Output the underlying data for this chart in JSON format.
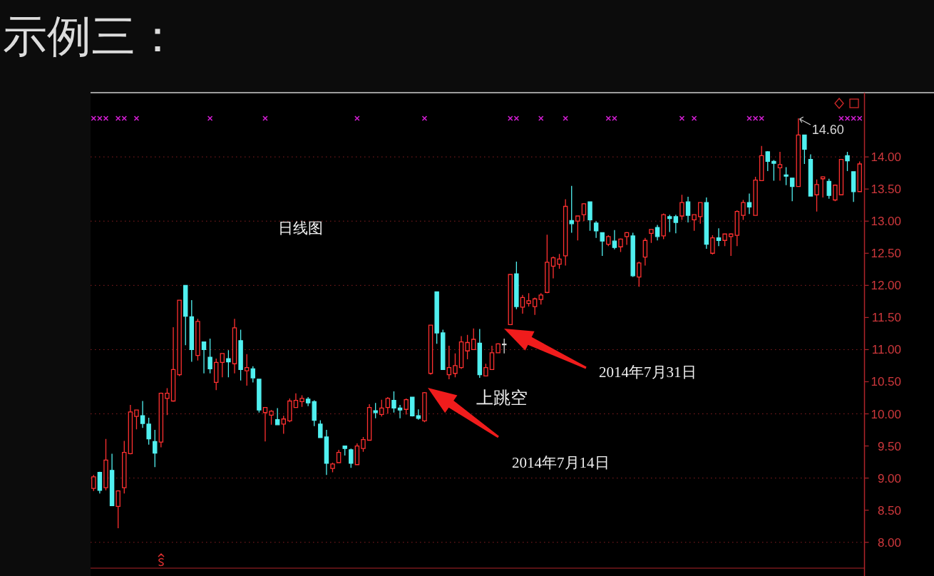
{
  "chart_data": {
    "type": "candlestick",
    "title": "示例三：",
    "categories": [
      null,
      null,
      null,
      null,
      null,
      null,
      null,
      null,
      null,
      null,
      null,
      null,
      null,
      null,
      null,
      null,
      null,
      null,
      null,
      null,
      null,
      null,
      null,
      null,
      null,
      null,
      null,
      null,
      null,
      null,
      null,
      null,
      null,
      null,
      null,
      null,
      null,
      null,
      null,
      null,
      null,
      null,
      null,
      null,
      null,
      null,
      null,
      null,
      null,
      null,
      null,
      null,
      null,
      null,
      null,
      null,
      null,
      null,
      null,
      null,
      null,
      null,
      null,
      null,
      null,
      null,
      null,
      null,
      null,
      null,
      null,
      null,
      null,
      null,
      null,
      null,
      null,
      null,
      null,
      null,
      null,
      null,
      null,
      null,
      null,
      null,
      null,
      null,
      null,
      null,
      null,
      null,
      null,
      null,
      null,
      null,
      null,
      null,
      null,
      null,
      null,
      null,
      null,
      null,
      null,
      null,
      null,
      null,
      null,
      null,
      null,
      null,
      null,
      null,
      null,
      null,
      null,
      null,
      null,
      null,
      null,
      null,
      null,
      null,
      null,
      null
    ],
    "ohlc": [
      [
        8.84,
        9.05,
        8.8,
        9.02
      ],
      [
        9.09,
        9.1,
        8.76,
        8.81
      ],
      [
        8.85,
        9.61,
        8.81,
        9.28
      ],
      [
        9.12,
        9.38,
        8.57,
        8.57
      ],
      [
        8.56,
        8.81,
        8.22,
        8.8
      ],
      [
        8.85,
        9.58,
        8.76,
        9.4
      ],
      [
        9.38,
        10.14,
        9.37,
        10.03
      ],
      [
        9.96,
        10.06,
        9.76,
        10.06
      ],
      [
        9.97,
        10.2,
        9.78,
        9.85
      ],
      [
        9.84,
        9.94,
        9.52,
        9.61
      ],
      [
        9.57,
        9.75,
        9.17,
        9.39
      ],
      [
        9.56,
        10.33,
        9.48,
        10.32
      ],
      [
        10.24,
        10.4,
        9.98,
        10.32
      ],
      [
        10.2,
        11.35,
        10.19,
        10.69
      ],
      [
        10.61,
        11.77,
        10.59,
        11.77
      ],
      [
        12.0,
        12.0,
        11.07,
        11.52
      ],
      [
        11.51,
        11.77,
        10.81,
        11.0
      ],
      [
        10.91,
        11.48,
        10.83,
        11.44
      ],
      [
        11.12,
        11.12,
        10.63,
        11.0
      ],
      [
        10.88,
        11.17,
        10.63,
        10.7
      ],
      [
        10.49,
        10.86,
        10.37,
        10.8
      ],
      [
        10.8,
        10.94,
        10.57,
        10.94
      ],
      [
        10.86,
        10.99,
        10.57,
        10.81
      ],
      [
        10.78,
        11.48,
        10.63,
        11.34
      ],
      [
        11.14,
        11.31,
        10.52,
        10.69
      ],
      [
        10.67,
        10.93,
        10.44,
        10.72
      ],
      [
        10.7,
        10.74,
        10.49,
        10.56
      ],
      [
        10.54,
        10.54,
        10.02,
        10.06
      ],
      [
        10.02,
        10.1,
        9.57,
        10.1
      ],
      [
        9.98,
        10.06,
        9.83,
        10.04
      ],
      [
        9.91,
        10.09,
        9.83,
        9.83
      ],
      [
        9.84,
        9.97,
        9.69,
        9.92
      ],
      [
        9.89,
        10.24,
        9.87,
        10.2
      ],
      [
        10.1,
        10.32,
        10.1,
        10.21
      ],
      [
        10.19,
        10.29,
        10.11,
        10.24
      ],
      [
        10.23,
        10.26,
        10.12,
        10.17
      ],
      [
        10.19,
        10.21,
        9.81,
        9.9
      ],
      [
        9.84,
        9.9,
        9.63,
        9.63
      ],
      [
        9.64,
        9.75,
        9.05,
        9.23
      ],
      [
        9.15,
        9.24,
        9.09,
        9.22
      ],
      [
        9.24,
        9.44,
        9.24,
        9.4
      ],
      [
        9.5,
        9.5,
        9.35,
        9.46
      ],
      [
        9.44,
        9.46,
        9.16,
        9.23
      ],
      [
        9.21,
        9.54,
        9.21,
        9.5
      ],
      [
        9.46,
        9.64,
        9.41,
        9.6
      ],
      [
        9.59,
        10.15,
        9.59,
        10.1
      ],
      [
        10.05,
        10.17,
        9.93,
        10.02
      ],
      [
        9.99,
        10.22,
        9.96,
        10.09
      ],
      [
        10.1,
        10.26,
        10.0,
        10.24
      ],
      [
        10.21,
        10.35,
        10.02,
        10.09
      ],
      [
        10.09,
        10.14,
        9.93,
        10.06
      ],
      [
        10.07,
        10.24,
        9.99,
        10.22
      ],
      [
        10.26,
        10.26,
        9.96,
        9.97
      ],
      [
        9.97,
        10.07,
        9.91,
        9.93
      ],
      [
        9.89,
        10.34,
        9.87,
        10.33
      ],
      [
        10.63,
        11.38,
        10.61,
        11.38
      ],
      [
        11.9,
        11.9,
        11.09,
        11.26
      ],
      [
        11.26,
        11.31,
        10.69,
        10.69
      ],
      [
        10.61,
        11.06,
        10.54,
        10.72
      ],
      [
        10.63,
        10.94,
        10.57,
        10.75
      ],
      [
        10.72,
        11.21,
        10.7,
        11.12
      ],
      [
        10.98,
        11.23,
        10.85,
        11.11
      ],
      [
        11.0,
        11.33,
        11.0,
        11.16
      ],
      [
        11.1,
        11.32,
        10.56,
        10.61
      ],
      [
        10.59,
        10.78,
        10.59,
        10.72
      ],
      [
        10.69,
        11.06,
        10.69,
        10.95
      ],
      [
        10.95,
        11.1,
        10.95,
        11.09
      ],
      [
        11.08,
        11.17,
        10.94,
        11.08
      ],
      [
        11.39,
        12.17,
        11.39,
        12.17
      ],
      [
        12.18,
        12.37,
        11.63,
        11.67
      ],
      [
        11.66,
        11.85,
        11.56,
        11.81
      ],
      [
        11.72,
        11.88,
        11.67,
        11.76
      ],
      [
        11.67,
        11.81,
        11.54,
        11.79
      ],
      [
        11.78,
        11.88,
        11.7,
        11.85
      ],
      [
        11.89,
        12.79,
        11.88,
        12.36
      ],
      [
        12.3,
        12.45,
        12.11,
        12.43
      ],
      [
        12.33,
        12.49,
        12.26,
        12.41
      ],
      [
        12.46,
        13.34,
        12.31,
        13.23
      ],
      [
        13.01,
        13.55,
        12.82,
        12.96
      ],
      [
        13.0,
        13.08,
        12.7,
        13.08
      ],
      [
        13.1,
        13.28,
        13.0,
        13.27
      ],
      [
        13.3,
        13.3,
        12.85,
        13.02
      ],
      [
        12.97,
        13.0,
        12.74,
        12.85
      ],
      [
        12.82,
        12.82,
        12.46,
        12.69
      ],
      [
        12.64,
        12.78,
        12.61,
        12.76
      ],
      [
        12.69,
        12.86,
        12.56,
        12.59
      ],
      [
        12.6,
        12.73,
        12.52,
        12.72
      ],
      [
        12.76,
        12.83,
        12.63,
        12.82
      ],
      [
        12.77,
        12.82,
        12.13,
        12.15
      ],
      [
        12.13,
        12.37,
        11.98,
        12.35
      ],
      [
        12.44,
        12.74,
        12.31,
        12.7
      ],
      [
        12.81,
        12.87,
        12.66,
        12.87
      ],
      [
        12.9,
        12.94,
        12.7,
        12.76
      ],
      [
        12.77,
        13.12,
        12.72,
        13.1
      ],
      [
        13.07,
        13.1,
        12.83,
        13.04
      ],
      [
        13.07,
        13.1,
        12.81,
        12.98
      ],
      [
        13.08,
        13.41,
        13.02,
        13.29
      ],
      [
        13.3,
        13.38,
        12.98,
        13.09
      ],
      [
        13.02,
        13.1,
        12.85,
        13.1
      ],
      [
        13.07,
        13.29,
        12.96,
        13.29
      ],
      [
        13.29,
        13.37,
        12.57,
        12.64
      ],
      [
        12.5,
        12.78,
        12.48,
        12.74
      ],
      [
        12.74,
        12.89,
        12.61,
        12.7
      ],
      [
        12.7,
        12.8,
        12.61,
        12.8
      ],
      [
        12.76,
        12.81,
        12.46,
        12.8
      ],
      [
        12.78,
        13.17,
        12.61,
        13.15
      ],
      [
        13.09,
        13.33,
        13.02,
        13.29
      ],
      [
        13.29,
        13.43,
        13.11,
        13.22
      ],
      [
        13.09,
        13.69,
        13.09,
        13.64
      ],
      [
        13.63,
        14.17,
        13.63,
        14.02
      ],
      [
        14.08,
        14.09,
        13.78,
        13.93
      ],
      [
        13.93,
        13.95,
        13.63,
        13.9
      ],
      [
        13.83,
        14.08,
        13.63,
        13.88
      ],
      [
        13.72,
        13.84,
        13.56,
        13.7
      ],
      [
        13.67,
        13.67,
        13.31,
        13.54
      ],
      [
        13.54,
        14.6,
        13.54,
        14.34
      ],
      [
        14.34,
        14.34,
        13.89,
        14.12
      ],
      [
        13.96,
        14.04,
        13.39,
        13.39
      ],
      [
        13.41,
        13.65,
        13.15,
        13.57
      ],
      [
        13.66,
        13.7,
        13.37,
        13.69
      ],
      [
        13.62,
        13.66,
        13.35,
        13.4
      ],
      [
        13.33,
        13.57,
        13.31,
        13.56
      ],
      [
        13.41,
        13.96,
        13.41,
        13.96
      ],
      [
        14.02,
        14.08,
        13.78,
        13.94
      ],
      [
        13.77,
        13.77,
        13.3,
        13.46
      ],
      [
        13.46,
        13.93,
        13.46,
        13.89
      ]
    ],
    "colors": [
      "#ff3030",
      "#50f0f0",
      "#ff3030",
      "#50f0f0",
      "#ff3030",
      "#ff3030",
      "#ff3030",
      "#ff3030",
      "#50f0f0",
      "#50f0f0",
      "#50f0f0",
      "#ff3030",
      "#ff3030",
      "#ff3030",
      "#ff3030",
      "#50f0f0",
      "#50f0f0",
      "#ff3030",
      "#50f0f0",
      "#50f0f0",
      "#ff3030",
      "#ff3030",
      "#50f0f0",
      "#ff3030",
      "#50f0f0",
      "#ff3030",
      "#50f0f0",
      "#50f0f0",
      "#ff3030",
      "#ff3030",
      "#50f0f0",
      "#ff3030",
      "#ff3030",
      "#ff3030",
      "#ff3030",
      "#50f0f0",
      "#50f0f0",
      "#50f0f0",
      "#50f0f0",
      "#ff3030",
      "#ff3030",
      "#50f0f0",
      "#50f0f0",
      "#ff3030",
      "#ff3030",
      "#ff3030",
      "#50f0f0",
      "#ff3030",
      "#ff3030",
      "#50f0f0",
      "#50f0f0",
      "#ff3030",
      "#50f0f0",
      "#50f0f0",
      "#ff3030",
      "#ff3030",
      "#50f0f0",
      "#50f0f0",
      "#ff3030",
      "#ff3030",
      "#ff3030",
      "#ff3030",
      "#ff3030",
      "#50f0f0",
      "#ff3030",
      "#ff3030",
      "#ff3030",
      "#d8d8d8",
      "#ff3030",
      "#50f0f0",
      "#ff3030",
      "#ff3030",
      "#ff3030",
      "#ff3030",
      "#ff3030",
      "#ff3030",
      "#ff3030",
      "#ff3030",
      "#50f0f0",
      "#ff3030",
      "#ff3030",
      "#50f0f0",
      "#50f0f0",
      "#50f0f0",
      "#ff3030",
      "#50f0f0",
      "#ff3030",
      "#ff3030",
      "#50f0f0",
      "#ff3030",
      "#ff3030",
      "#ff3030",
      "#50f0f0",
      "#ff3030",
      "#50f0f0",
      "#50f0f0",
      "#ff3030",
      "#50f0f0",
      "#ff3030",
      "#ff3030",
      "#50f0f0",
      "#ff3030",
      "#50f0f0",
      "#ff3030",
      "#ff3030",
      "#ff3030",
      "#ff3030",
      "#50f0f0",
      "#ff3030",
      "#ff3030",
      "#50f0f0",
      "#50f0f0",
      "#ff3030",
      "#50f0f0",
      "#50f0f0",
      "#ff3030",
      "#50f0f0",
      "#50f0f0",
      "#ff3030",
      "#ff3030",
      "#50f0f0",
      "#ff3030",
      "#ff3030",
      "#50f0f0",
      "#50f0f0",
      "#ff3030"
    ],
    "series": [
      {
        "type": "scatter",
        "color": "#d21ed2",
        "marker": "cross",
        "values": [
          14.6,
          14.6,
          14.6,
          null,
          14.6,
          14.6,
          null,
          14.6,
          null,
          null,
          null,
          null,
          null,
          null,
          null,
          null,
          null,
          null,
          null,
          14.6,
          null,
          null,
          null,
          null,
          null,
          null,
          null,
          null,
          14.6,
          null,
          null,
          null,
          null,
          null,
          null,
          null,
          null,
          null,
          null,
          null,
          null,
          null,
          null,
          14.6,
          null,
          null,
          null,
          null,
          null,
          null,
          null,
          null,
          null,
          null,
          14.6,
          null,
          null,
          null,
          null,
          null,
          null,
          null,
          null,
          null,
          null,
          null,
          null,
          null,
          14.6,
          14.6,
          null,
          null,
          null,
          14.6,
          null,
          null,
          null,
          14.6,
          null,
          null,
          null,
          null,
          null,
          null,
          14.6,
          14.6,
          null,
          null,
          null,
          null,
          null,
          null,
          null,
          null,
          null,
          null,
          14.6,
          null,
          14.6,
          null,
          null,
          null,
          null,
          null,
          null,
          null,
          null,
          14.6,
          14.6,
          14.6,
          null,
          null,
          null,
          null,
          null,
          null,
          null,
          null,
          null,
          null,
          null,
          null,
          14.6,
          14.6,
          14.6,
          14.6
        ]
      }
    ],
    "ylim": [
      7.62,
      15.0
    ],
    "yticks": [
      {
        "value": 8,
        "label": "8.00"
      },
      {
        "value": 8.5,
        "label": "8.50"
      },
      {
        "value": 9,
        "label": "9.00"
      },
      {
        "value": 9.5,
        "label": "9.50"
      },
      {
        "value": 10,
        "label": "10.00"
      },
      {
        "value": 10.5,
        "label": "10.50"
      },
      {
        "value": 11,
        "label": "11.00"
      },
      {
        "value": 11.5,
        "label": "11.50"
      },
      {
        "value": 12,
        "label": "12.00"
      },
      {
        "value": 12.5,
        "label": "12.50"
      },
      {
        "value": 13,
        "label": "13.00"
      },
      {
        "value": 13.5,
        "label": "13.50"
      },
      {
        "value": 14,
        "label": "14.00"
      }
    ],
    "grid": "y",
    "tick_labels": "y",
    "annotations": [
      "日线图",
      "上跳空",
      "2014年7月14日",
      "2014年7月31日",
      "14.60"
    ]
  }
}
